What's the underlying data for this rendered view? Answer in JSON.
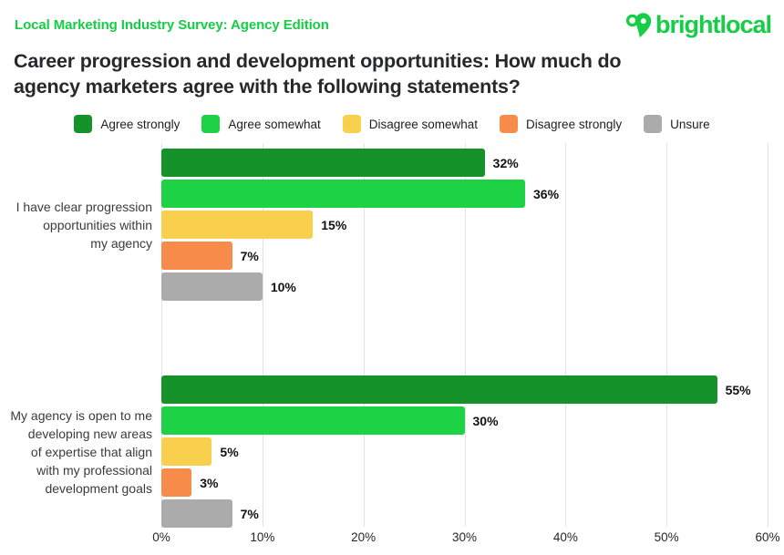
{
  "header": {
    "kicker": "Local Marketing Industry Survey: Agency Edition",
    "title_line1": "Career progression and development opportunities: How much do",
    "title_line2": "agency marketers agree with the following statements?",
    "logo_text": "brightlocal"
  },
  "colors": {
    "brand_green": "#15CE45",
    "title_text": "#26282B",
    "gridline": "#E3E3E3",
    "value_label": "#111111",
    "category_label": "#3B3B3B",
    "axis_label": "#262626"
  },
  "chart_data": {
    "type": "bar",
    "orientation": "horizontal",
    "title": "Career progression and development opportunities: How much do agency marketers agree with the following statements?",
    "xlim": [
      0,
      60
    ],
    "x_ticks": [
      "0%",
      "10%",
      "20%",
      "30%",
      "40%",
      "50%",
      "60%"
    ],
    "grid": true,
    "legend_position": "top",
    "value_suffix": "%",
    "categories": [
      "I have clear progression opportunities within my agency",
      "My agency is open to me developing new areas of expertise that align with my professional development goals"
    ],
    "category_lines": [
      [
        "I have clear progression",
        "opportunities within",
        "my agency"
      ],
      [
        "My agency is open to me",
        "developing new areas",
        "of expertise that align",
        "with my professional",
        "development goals"
      ]
    ],
    "series": [
      {
        "name": "Agree strongly",
        "color": "#16922B",
        "values": [
          32,
          55
        ]
      },
      {
        "name": "Agree somewhat",
        "color": "#1ED246",
        "values": [
          36,
          30
        ]
      },
      {
        "name": "Disagree somewhat",
        "color": "#F8D04D",
        "values": [
          15,
          5
        ]
      },
      {
        "name": "Disagree strongly",
        "color": "#F78C4A",
        "values": [
          7,
          3
        ]
      },
      {
        "name": "Unsure",
        "color": "#ABABAB",
        "values": [
          10,
          7
        ]
      }
    ]
  }
}
